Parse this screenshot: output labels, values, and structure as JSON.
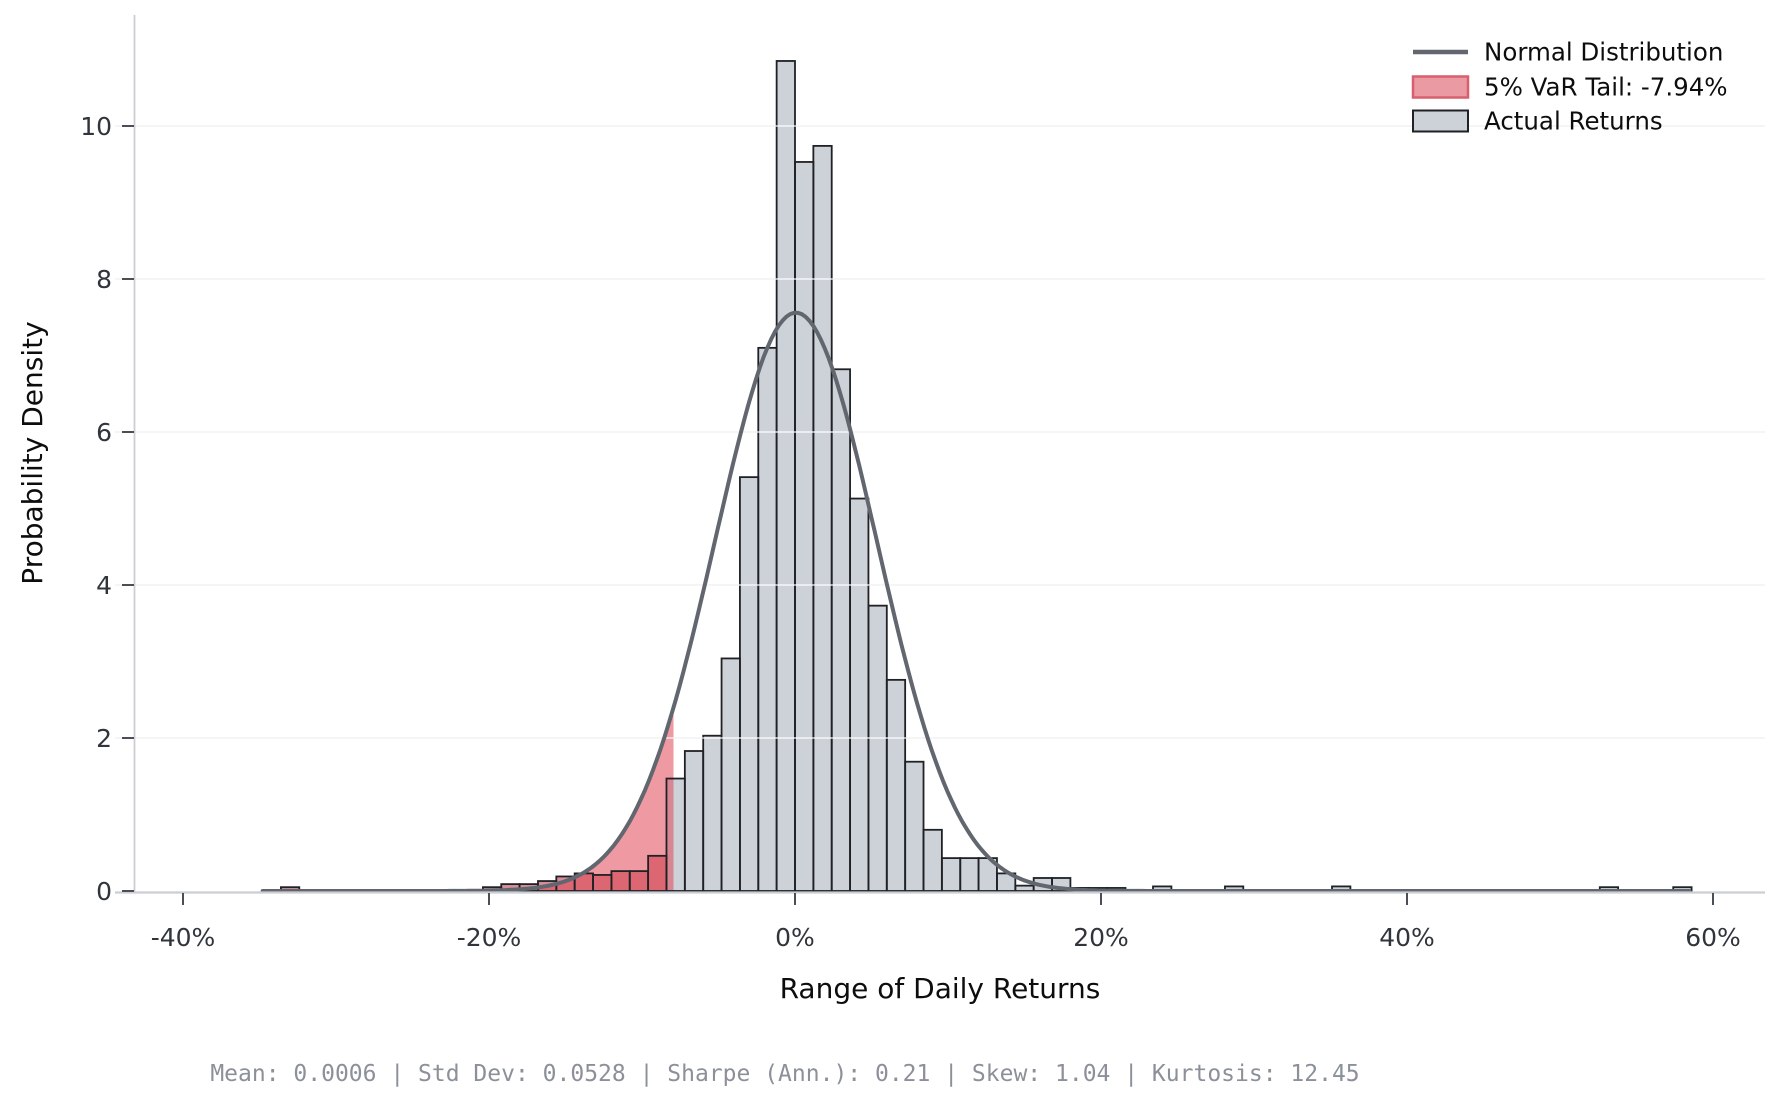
{
  "chart_data": {
    "type": "bar",
    "subtype": "histogram-with-normal-overlay",
    "title": "",
    "xlabel": "Range of Daily Returns",
    "ylabel": "Probability Density",
    "x_ticks": [
      {
        "value": -40,
        "label": "-40%"
      },
      {
        "value": -20,
        "label": "-20%"
      },
      {
        "value": 0,
        "label": "0%"
      },
      {
        "value": 20,
        "label": "20%"
      },
      {
        "value": 40,
        "label": "40%"
      },
      {
        "value": 60,
        "label": "60%"
      }
    ],
    "y_ticks": [
      {
        "value": 0,
        "label": "0"
      },
      {
        "value": 2,
        "label": "2"
      },
      {
        "value": 4,
        "label": "4"
      },
      {
        "value": 6,
        "label": "6"
      },
      {
        "value": 8,
        "label": "8"
      },
      {
        "value": 10,
        "label": "10"
      }
    ],
    "xlim": [
      -44.4,
      63.4
    ],
    "ylim": [
      0,
      11.45
    ],
    "grid": "horizontal",
    "bin_width_pct": 1.2,
    "bins": [
      {
        "start": -33.6,
        "height": 0.05
      },
      {
        "start": -20.4,
        "height": 0.05
      },
      {
        "start": -19.2,
        "height": 0.09
      },
      {
        "start": -18.0,
        "height": 0.09
      },
      {
        "start": -16.8,
        "height": 0.13
      },
      {
        "start": -15.6,
        "height": 0.19
      },
      {
        "start": -14.4,
        "height": 0.23
      },
      {
        "start": -13.2,
        "height": 0.21
      },
      {
        "start": -12.0,
        "height": 0.26
      },
      {
        "start": -10.8,
        "height": 0.26
      },
      {
        "start": -9.6,
        "height": 0.46
      },
      {
        "start": -8.4,
        "height": 1.47
      },
      {
        "start": -7.2,
        "height": 1.83
      },
      {
        "start": -6.0,
        "height": 2.03
      },
      {
        "start": -4.8,
        "height": 3.04
      },
      {
        "start": -3.6,
        "height": 5.41
      },
      {
        "start": -2.4,
        "height": 7.1
      },
      {
        "start": -1.2,
        "height": 10.85
      },
      {
        "start": 0.0,
        "height": 9.53
      },
      {
        "start": 1.2,
        "height": 9.74
      },
      {
        "start": 2.4,
        "height": 6.82
      },
      {
        "start": 3.6,
        "height": 5.13
      },
      {
        "start": 4.8,
        "height": 3.73
      },
      {
        "start": 6.0,
        "height": 2.76
      },
      {
        "start": 7.2,
        "height": 1.69
      },
      {
        "start": 8.4,
        "height": 0.8
      },
      {
        "start": 9.6,
        "height": 0.43
      },
      {
        "start": 10.8,
        "height": 0.43
      },
      {
        "start": 12.0,
        "height": 0.43
      },
      {
        "start": 13.2,
        "height": 0.23
      },
      {
        "start": 14.4,
        "height": 0.07
      },
      {
        "start": 15.6,
        "height": 0.17
      },
      {
        "start": 16.8,
        "height": 0.17
      },
      {
        "start": 18.0,
        "height": 0.04
      },
      {
        "start": 19.2,
        "height": 0.04
      },
      {
        "start": 20.4,
        "height": 0.04
      },
      {
        "start": 23.4,
        "height": 0.06
      },
      {
        "start": 28.1,
        "height": 0.06
      },
      {
        "start": 35.1,
        "height": 0.06
      },
      {
        "start": 52.6,
        "height": 0.05
      },
      {
        "start": 57.4,
        "height": 0.05
      }
    ],
    "normal_curve": {
      "mean_pct": 0.06,
      "std_pct": 5.28,
      "peak_density": 7.56,
      "range_pct": [
        -34.8,
        58.6
      ]
    },
    "var_threshold_pct": -7.94,
    "legend": {
      "position": "upper-right",
      "items": [
        {
          "key": "normal-distribution",
          "sample": "line",
          "label": "Normal Distribution"
        },
        {
          "key": "var-tail",
          "sample": "red-patch",
          "label": "5% VaR Tail: -7.94%"
        },
        {
          "key": "actual-returns",
          "sample": "gray-patch",
          "label": "Actual Returns"
        }
      ]
    },
    "stats_line": "Mean: 0.0006  |  Std Dev: 0.0528  |  Sharpe (Ann.): 0.21  |  Skew: 1.04  |  Kurtosis: 12.45",
    "colors": {
      "bar_fill": "#cdd2d9",
      "bar_edge": "#1f2125",
      "tail_overlay": "rgba(226,71,86,0.5)",
      "tail_area_fill": "rgba(226,71,86,0.55)",
      "curve": "#62676f",
      "grid_under": "#e7e7e7",
      "grid_over": "rgba(255,255,255,0.8)",
      "spine": "#cbced2",
      "tick": "#4a4f57",
      "tick_label": "#30353c",
      "axis_label": "#0d0d0d",
      "legend_text": "#0d0d0d",
      "legend_red_fill": "#ea9aa2",
      "legend_red_edge": "#d95f6d",
      "stats_text": "#8b9099"
    }
  }
}
